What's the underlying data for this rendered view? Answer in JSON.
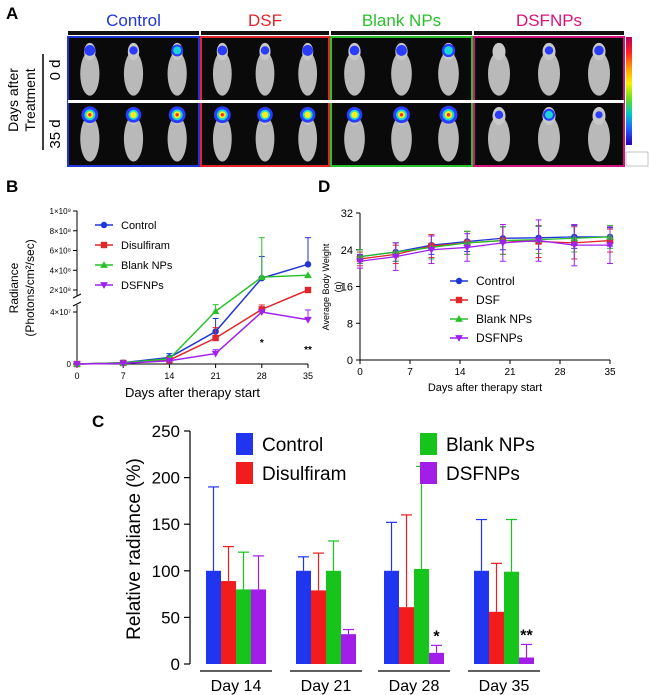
{
  "panels": {
    "a": "A",
    "b": "B",
    "c": "C",
    "d": "D"
  },
  "panel_a": {
    "groups": [
      {
        "label": "Control",
        "color": "#1f35d6"
      },
      {
        "label": "DSF",
        "color": "#e0262a"
      },
      {
        "label": "Blank NPs",
        "color": "#29c12b"
      },
      {
        "label": "DSFNPs",
        "color": "#d4147a"
      }
    ],
    "ylabel_lines": [
      "Days after",
      "Treatment"
    ],
    "rows": [
      "0 d",
      "35 d"
    ],
    "colorbar_colors": [
      "#b3005a",
      "#ff2222",
      "#ff9b00",
      "#f7f200",
      "#63e01c",
      "#00c8c8",
      "#1e5bff",
      "#2a00b0"
    ]
  },
  "chart_data": [
    {
      "id": "B",
      "type": "line",
      "x": [
        0,
        7,
        14,
        21,
        28,
        35
      ],
      "xlabel": "Days after therapy start",
      "ylabel_lines": [
        "Radiance",
        "(Photons/cm²/sec)"
      ],
      "ytick_labels_upper": [
        "1×10⁹",
        "8×10⁸",
        "6×10⁸",
        "4×10⁸",
        "2×10⁸"
      ],
      "ytick_labels_lower": [
        "4×10⁷",
        "0"
      ],
      "y_scale": "broken",
      "legend_position": "upper-left",
      "series": [
        {
          "name": "Control",
          "color": "#1f35d6",
          "marker": "circle",
          "values": [
            0,
            1000000,
            5000000,
            25000000,
            320000000,
            460000000
          ],
          "err": [
            0,
            500000,
            3000000,
            10000000,
            220000000,
            270000000
          ]
        },
        {
          "name": "Disulfiram",
          "color": "#e0262a",
          "marker": "square",
          "values": [
            0,
            800000,
            3000000,
            20000000,
            68000000,
            200000000
          ],
          "err": [
            0,
            400000,
            2000000,
            8000000,
            30000000,
            0
          ]
        },
        {
          "name": "Blank NPs",
          "color": "#29c12b",
          "marker": "triangle",
          "values": [
            0,
            900000,
            4000000,
            55000000,
            330000000,
            350000000
          ],
          "err": [
            0,
            400000,
            2000000,
            45000000,
            400000000,
            0
          ]
        },
        {
          "name": "DSFNPs",
          "color": "#a020f0",
          "marker": "triangle-down",
          "values": [
            0,
            500000,
            2500000,
            8000000,
            40000000,
            34000000
          ],
          "err": [
            0,
            300000,
            1500000,
            3000000,
            0,
            30000000
          ]
        }
      ],
      "annotations": [
        {
          "x": 28,
          "text": "*"
        },
        {
          "x": 35,
          "text": "**"
        }
      ]
    },
    {
      "id": "D",
      "type": "line",
      "x": [
        0,
        5,
        10,
        15,
        20,
        25,
        30,
        35
      ],
      "xticks": [
        0,
        7,
        14,
        21,
        28,
        35
      ],
      "xlabel": "Days after therapy start",
      "ylabel_lines": [
        "Average Body  Weight",
        "(g)"
      ],
      "ylim": [
        0,
        32
      ],
      "yticks": [
        0,
        8,
        16,
        24,
        32
      ],
      "legend_position": "lower-right",
      "series": [
        {
          "name": "Control",
          "color": "#1f35d6",
          "marker": "circle",
          "values": [
            22.5,
            23.5,
            25,
            25.8,
            26.5,
            26.6,
            26.8,
            26.8
          ],
          "err": [
            1.5,
            2,
            2,
            2.2,
            2.5,
            2.5,
            2.5,
            2
          ]
        },
        {
          "name": "DSF",
          "color": "#e0262a",
          "marker": "square",
          "values": [
            22,
            23,
            24.8,
            25.5,
            26,
            25.8,
            25.5,
            26
          ],
          "err": [
            1.5,
            2,
            2.5,
            2.5,
            3,
            3.5,
            3.5,
            2.5
          ]
        },
        {
          "name": "Blank NPs",
          "color": "#29c12b",
          "marker": "triangle",
          "values": [
            22.5,
            23.5,
            24.5,
            25.5,
            26,
            26.2,
            26.5,
            26.8
          ],
          "err": [
            1.5,
            2,
            2.5,
            2.5,
            3,
            3,
            3,
            2.5
          ]
        },
        {
          "name": "DSFNPs",
          "color": "#a020f0",
          "marker": "triangle-down",
          "values": [
            21.5,
            22.5,
            24,
            24.5,
            25.5,
            26,
            25,
            25
          ],
          "err": [
            1.5,
            3,
            3,
            3,
            4,
            4.5,
            4.5,
            4
          ]
        }
      ]
    },
    {
      "id": "C",
      "type": "bar",
      "categories": [
        "Day 14",
        "Day 21",
        "Day 28",
        "Day 35"
      ],
      "ylabel": "Relative radiance (%)",
      "ylim": [
        0,
        250
      ],
      "yticks": [
        0,
        50,
        100,
        150,
        200,
        250
      ],
      "legend_position": "top",
      "series": [
        {
          "name": "Control",
          "color": "#1f35f0",
          "values": [
            100,
            100,
            100,
            100
          ],
          "err": [
            90,
            15,
            52,
            55
          ]
        },
        {
          "name": "Disulfiram",
          "color": "#f21c1c",
          "values": [
            89,
            79,
            61,
            56
          ],
          "err": [
            37,
            40,
            99,
            52
          ]
        },
        {
          "name": "Blank NPs",
          "color": "#16c41c",
          "values": [
            80,
            100,
            102,
            99
          ],
          "err": [
            40,
            32,
            110,
            56
          ]
        },
        {
          "name": "DSFNPs",
          "color": "#a21ee8",
          "values": [
            80,
            32,
            12,
            7
          ],
          "err": [
            36,
            5,
            8,
            14
          ]
        }
      ],
      "annotations": [
        {
          "category": "Day 28",
          "text": "*"
        },
        {
          "category": "Day 35",
          "text": "**"
        }
      ]
    }
  ]
}
